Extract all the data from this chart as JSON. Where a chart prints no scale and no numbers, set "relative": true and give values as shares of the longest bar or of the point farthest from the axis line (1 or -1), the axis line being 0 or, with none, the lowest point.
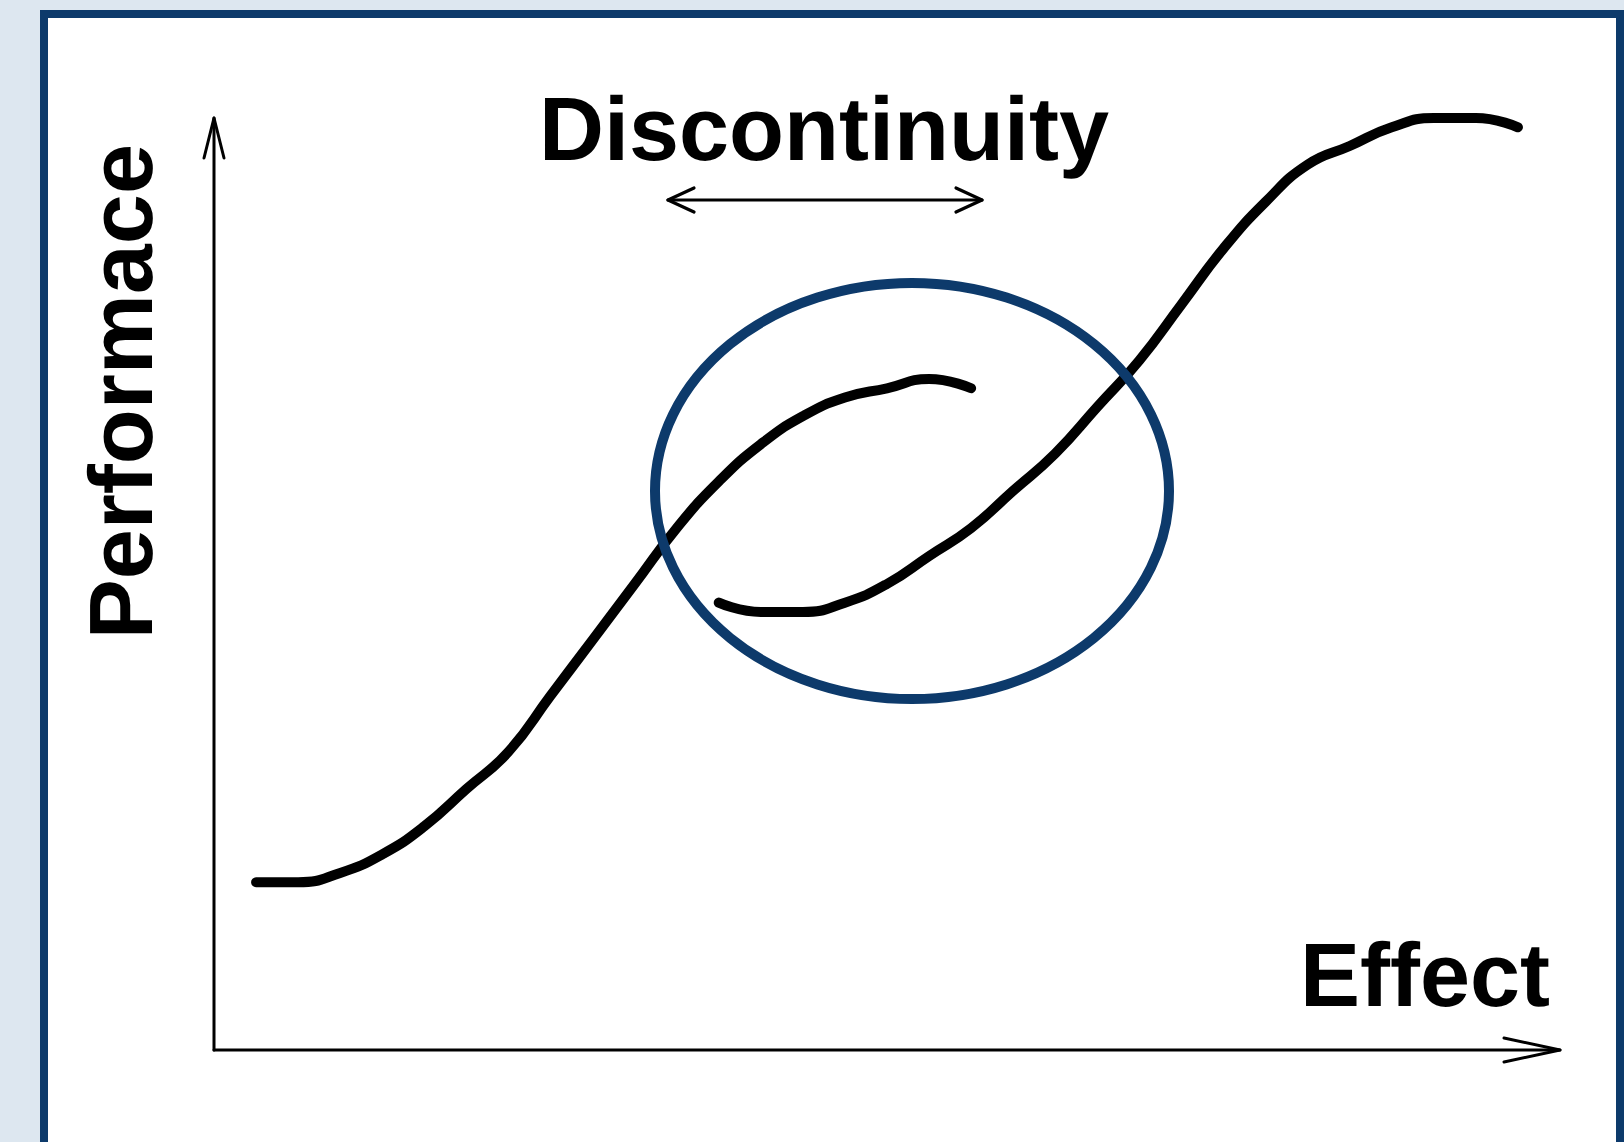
{
  "chart_data": {
    "type": "line",
    "relative": true,
    "xlabel": "Effect",
    "ylabel": "Performace",
    "annotations": [
      "Discontinuity"
    ],
    "marker": "none",
    "categories": [
      null,
      null,
      null,
      null,
      null,
      null,
      null,
      null,
      null,
      null,
      null,
      null,
      null,
      null,
      null,
      null,
      null,
      null,
      null,
      null,
      null,
      null,
      null,
      null,
      null,
      null,
      null,
      null,
      null,
      null,
      null,
      null,
      null
    ],
    "series": [
      {
        "color": "#000000",
        "values": [
          null,
          0.18,
          0.18,
          0.19,
          0.21,
          0.24,
          0.28,
          0.32,
          0.38,
          0.44,
          0.5,
          0.56,
          0.61,
          0.65,
          0.68,
          0.7,
          0.71,
          0.72,
          0.71,
          null,
          null,
          null,
          null,
          null,
          null,
          null,
          null,
          null,
          null,
          null,
          null,
          null,
          null
        ]
      },
      {
        "color": "#000000",
        "values": [
          null,
          null,
          null,
          null,
          null,
          null,
          null,
          null,
          null,
          null,
          null,
          null,
          0.48,
          0.47,
          0.47,
          0.48,
          0.5,
          0.53,
          0.56,
          0.6,
          0.64,
          0.69,
          0.74,
          0.8,
          0.86,
          0.91,
          0.95,
          0.97,
          0.99,
          1.0,
          1.0,
          0.99,
          null
        ]
      }
    ]
  }
}
